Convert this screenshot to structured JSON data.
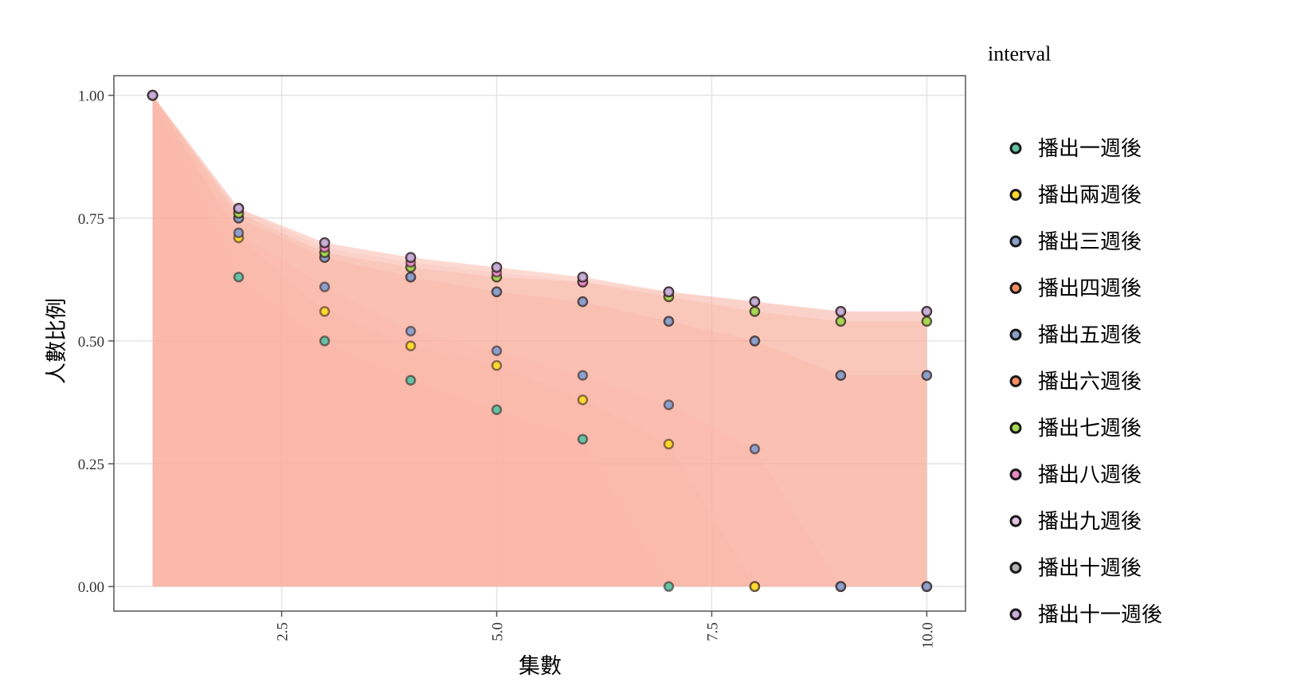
{
  "chart_data": {
    "type": "area",
    "title": "",
    "xlabel": "集數",
    "ylabel": "人數比例",
    "xlim": [
      0.55,
      10.45
    ],
    "ylim": [
      -0.05,
      1.04
    ],
    "x_ticks": [
      2.5,
      5.0,
      7.5,
      10.0
    ],
    "x_tick_labels": [
      "2.5",
      "5.0",
      "7.5",
      "10.0"
    ],
    "y_ticks": [
      0,
      0.25,
      0.5,
      0.75,
      1.0
    ],
    "y_tick_labels": [
      "0.00",
      "0.25",
      "0.50",
      "0.75",
      "1.00"
    ],
    "grid": true,
    "area_fill": "#f8b4a4",
    "legend": {
      "title": "interval",
      "placement": "right"
    },
    "x": [
      1,
      2,
      3,
      4,
      5,
      6,
      7,
      8,
      9,
      10
    ],
    "series": [
      {
        "name": "播出一週後",
        "color": "#66c2a5",
        "values": [
          1.0,
          0.63,
          0.5,
          0.42,
          0.36,
          0.3,
          0.0,
          0.0,
          0.0,
          0.0
        ]
      },
      {
        "name": "播出兩週後",
        "color": "#ffd92f",
        "values": [
          1.0,
          0.71,
          0.56,
          0.49,
          0.45,
          0.38,
          0.29,
          0.0,
          0.0,
          0.0
        ]
      },
      {
        "name": "播出三週後",
        "color": "#8da0cb",
        "values": [
          1.0,
          0.72,
          0.61,
          0.52,
          0.48,
          0.43,
          0.37,
          0.28,
          0.0,
          0.0
        ]
      },
      {
        "name": "播出四週後",
        "color": "#fc8d62",
        "values": [
          1.0,
          0.75,
          0.67,
          0.63,
          0.6,
          0.58,
          0.54,
          0.5,
          0.43,
          0.43
        ]
      },
      {
        "name": "播出五週後",
        "color": "#8da0cb",
        "values": [
          1.0,
          0.75,
          0.67,
          0.63,
          0.6,
          0.58,
          0.54,
          0.5,
          0.43,
          0.43
        ]
      },
      {
        "name": "播出六週後",
        "color": "#fc8d62",
        "values": [
          1.0,
          0.76,
          0.68,
          0.65,
          0.63,
          0.62,
          0.59,
          0.56,
          0.54,
          0.54
        ]
      },
      {
        "name": "播出七週後",
        "color": "#a6d854",
        "values": [
          1.0,
          0.76,
          0.68,
          0.65,
          0.63,
          0.62,
          0.59,
          0.56,
          0.54,
          0.54
        ]
      },
      {
        "name": "播出八週後",
        "color": "#e78ac3",
        "values": [
          1.0,
          0.77,
          0.69,
          0.66,
          0.64,
          0.62,
          0.6,
          0.58,
          0.56,
          0.56
        ]
      },
      {
        "name": "播出九週後",
        "color": "#e5c4de",
        "values": [
          1.0,
          0.77,
          0.7,
          0.67,
          0.65,
          0.63,
          0.6,
          0.58,
          0.56,
          0.56
        ]
      },
      {
        "name": "播出十週後",
        "color": "#b3b3b3",
        "values": [
          1.0,
          0.77,
          0.7,
          0.67,
          0.65,
          0.63,
          0.6,
          0.58,
          0.56,
          0.56
        ]
      },
      {
        "name": "播出十一週後",
        "color": "#c5aed8",
        "values": [
          1.0,
          0.77,
          0.7,
          0.67,
          0.65,
          0.63,
          0.6,
          0.58,
          0.56,
          0.56
        ]
      }
    ]
  }
}
